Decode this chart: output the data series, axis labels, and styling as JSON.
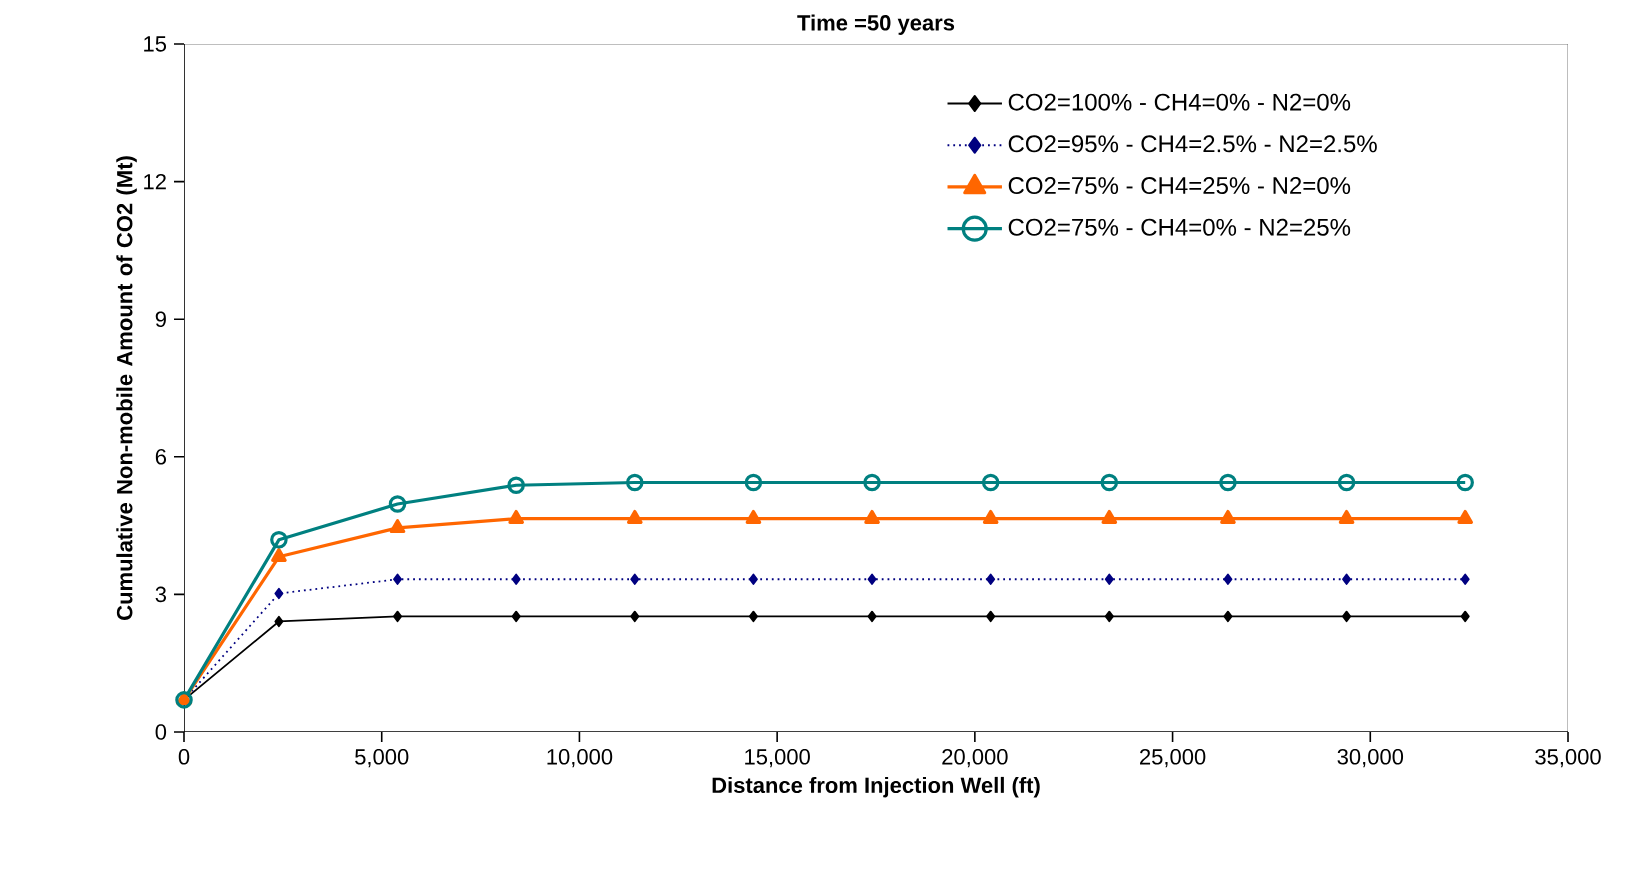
{
  "chart_data": {
    "type": "line",
    "title": "Time =50 years",
    "xlabel": "Distance from Injection Well (ft)",
    "ylabel": "Cumulative Non-mobile Amount of CO2 (Mt)",
    "x": [
      0,
      2400,
      5400,
      8400,
      11400,
      14400,
      17400,
      20400,
      23400,
      26400,
      29400,
      32400
    ],
    "series": [
      {
        "name": "CO2=100% - CH4=0% - N2=0%",
        "color": "#000000",
        "marker": "diamond",
        "line_style": "solid",
        "values": [
          0.7,
          2.41,
          2.52,
          2.52,
          2.52,
          2.52,
          2.52,
          2.52,
          2.52,
          2.52,
          2.52,
          2.52
        ]
      },
      {
        "name": "CO2=95% - CH4=2.5% - N2=2.5%",
        "color": "#000080",
        "marker": "diamond",
        "line_style": "dotted",
        "values": [
          0.7,
          3.02,
          3.33,
          3.33,
          3.33,
          3.33,
          3.33,
          3.33,
          3.33,
          3.33,
          3.33,
          3.33
        ]
      },
      {
        "name": "CO2=75% - CH4=25% - N2=0%",
        "color": "#ff6600",
        "marker": "triangle",
        "line_style": "solid",
        "values": [
          0.7,
          3.82,
          4.45,
          4.65,
          4.65,
          4.65,
          4.65,
          4.65,
          4.65,
          4.65,
          4.65,
          4.65
        ]
      },
      {
        "name": "CO2=75% - CH4=0% - N2=25%",
        "color": "#008080",
        "marker": "circle",
        "line_style": "solid",
        "values": [
          0.7,
          4.19,
          4.97,
          5.38,
          5.44,
          5.44,
          5.44,
          5.44,
          5.44,
          5.44,
          5.44,
          5.44
        ]
      }
    ],
    "xlim": [
      0,
      35000
    ],
    "ylim": [
      0,
      15
    ],
    "xticks": [
      {
        "value": 0,
        "label": "0"
      },
      {
        "value": 5000,
        "label": "5,000"
      },
      {
        "value": 10000,
        "label": "10,000"
      },
      {
        "value": 15000,
        "label": "15,000"
      },
      {
        "value": 20000,
        "label": "20,000"
      },
      {
        "value": 25000,
        "label": "25,000"
      },
      {
        "value": 30000,
        "label": "30,000"
      },
      {
        "value": 35000,
        "label": "35,000"
      }
    ],
    "yticks": [
      0,
      3,
      6,
      9,
      12,
      15
    ],
    "grid": false,
    "legend": "top right"
  }
}
